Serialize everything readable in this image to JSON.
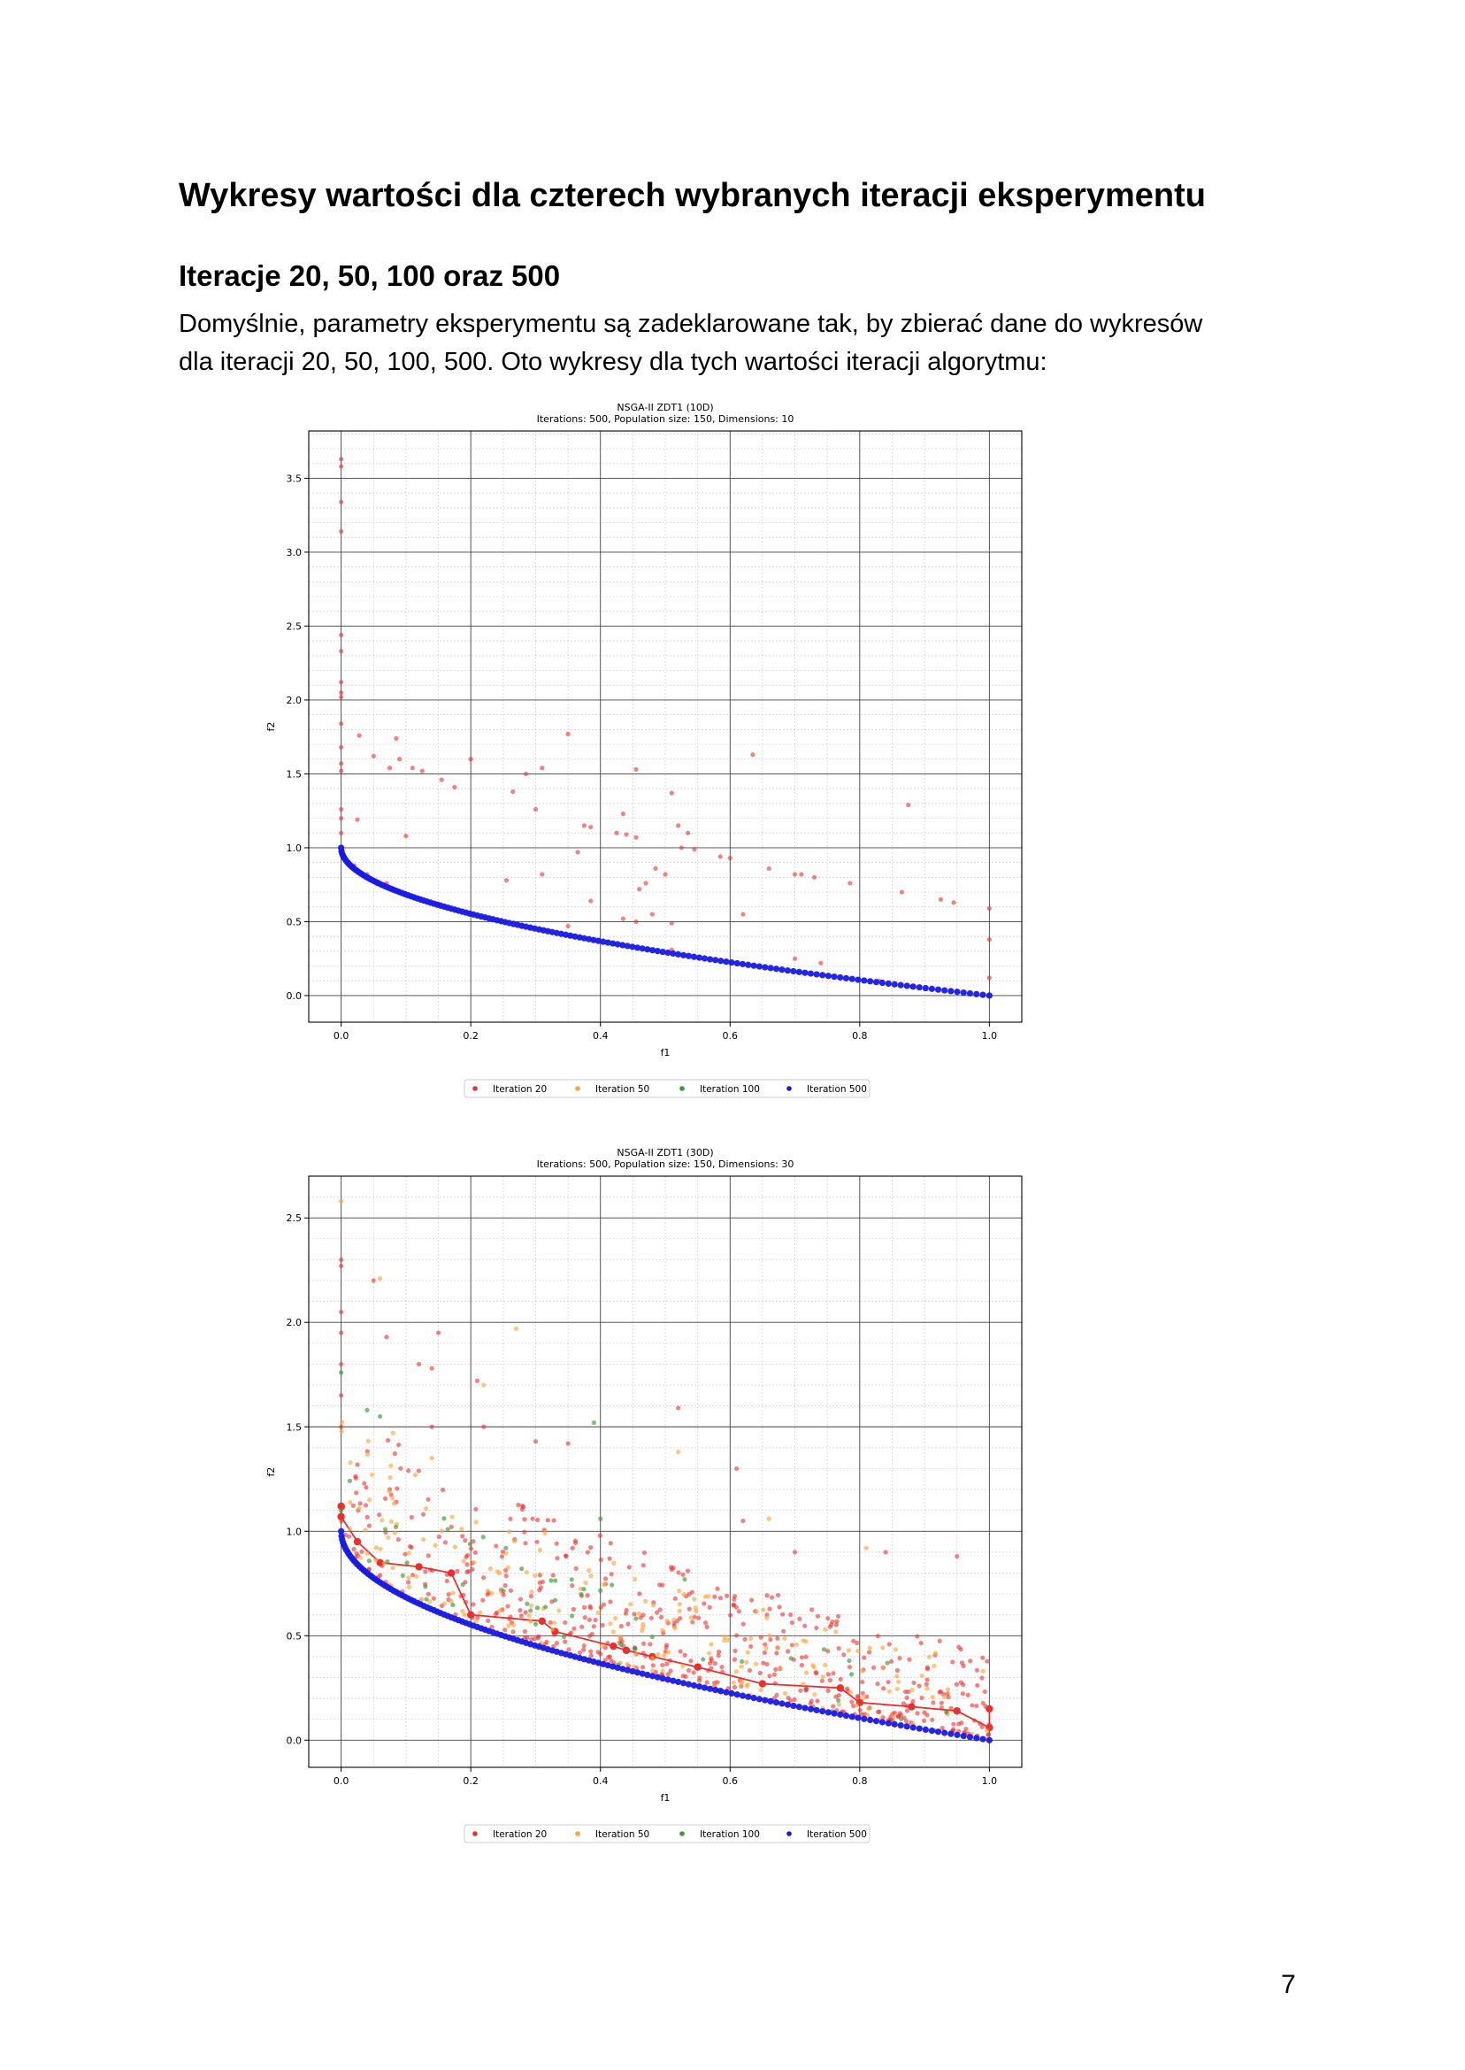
{
  "heading": "Wykresy wartości dla czterech wybranych iteracji eksperymentu",
  "subheading": "Iteracje 20, 50, 100 oraz 500",
  "paragraph": {
    "line1": "Domyślnie, parametry eksperymentu są zadeklarowane tak, by zbierać dane do wykresów",
    "line2": "dla iteracji 20, 50, 100, 500. Oto wykresy dla tych wartości iteracji algorytmu:"
  },
  "page_number": "7",
  "chart_data": [
    {
      "type": "scatter",
      "title": "NSGA-II ZDT1 (10D)",
      "subtitle": "Iterations: 500, Population size: 150, Dimensions: 10",
      "xlabel": "f1",
      "ylabel": "f2",
      "xlim": [
        -0.05,
        1.05
      ],
      "ylim": [
        -0.18,
        3.82
      ],
      "xticks": [
        "0.0",
        "0.2",
        "0.4",
        "0.6",
        "0.8",
        "1.0"
      ],
      "xtick_values": [
        0,
        0.2,
        0.4,
        0.6,
        0.8,
        1.0
      ],
      "yticks": [
        "0.0",
        "0.5",
        "1.0",
        "1.5",
        "2.0",
        "2.5",
        "3.0",
        "3.5"
      ],
      "ytick_values": [
        0,
        0.5,
        1.0,
        1.5,
        2.0,
        2.5,
        3.0,
        3.5
      ],
      "grid": true,
      "legend_position": "below",
      "series": [
        {
          "name": "Iteration 20",
          "color": "#e8302e",
          "points": [
            [
              0,
              3.63
            ],
            [
              0,
              3.58
            ],
            [
              0,
              3.34
            ],
            [
              0,
              3.14
            ],
            [
              0,
              2.44
            ],
            [
              0,
              2.33
            ],
            [
              0,
              2.12
            ],
            [
              0,
              2.05
            ],
            [
              0,
              2.02
            ],
            [
              0,
              1.84
            ],
            [
              0,
              1.68
            ],
            [
              0,
              1.57
            ],
            [
              0,
              1.52
            ],
            [
              0,
              1.26
            ],
            [
              0,
              1.2
            ],
            [
              0,
              1.1
            ],
            [
              0.028,
              1.76
            ],
            [
              0.05,
              1.62
            ],
            [
              0.075,
              1.54
            ],
            [
              0.085,
              1.74
            ],
            [
              0.09,
              1.6
            ],
            [
              0.11,
              1.54
            ],
            [
              0.125,
              1.52
            ],
            [
              0.155,
              1.46
            ],
            [
              0.175,
              1.41
            ],
            [
              0.2,
              1.6
            ],
            [
              0.265,
              1.38
            ],
            [
              0.285,
              1.5
            ],
            [
              0.3,
              1.26
            ],
            [
              0.31,
              1.54
            ],
            [
              0.35,
              1.77
            ],
            [
              0.435,
              1.23
            ],
            [
              0.455,
              1.53
            ],
            [
              0.51,
              1.37
            ],
            [
              0.52,
              1.15
            ],
            [
              0.025,
              1.19
            ],
            [
              0.1,
              1.08
            ],
            [
              0.375,
              1.15
            ],
            [
              0.385,
              1.14
            ],
            [
              0.365,
              0.97
            ],
            [
              0.425,
              1.1
            ],
            [
              0.44,
              1.09
            ],
            [
              0.455,
              1.07
            ],
            [
              0.525,
              1.0
            ],
            [
              0.535,
              1.1
            ],
            [
              0.545,
              0.99
            ],
            [
              0.585,
              0.94
            ],
            [
              0.6,
              0.93
            ],
            [
              0.635,
              1.63
            ],
            [
              0.66,
              0.86
            ],
            [
              0.7,
              0.82
            ],
            [
              0.71,
              0.82
            ],
            [
              0.73,
              0.8
            ],
            [
              0.785,
              0.76
            ],
            [
              0.865,
              0.7
            ],
            [
              0.875,
              1.29
            ],
            [
              0.925,
              0.65
            ],
            [
              0.945,
              0.63
            ],
            [
              0.255,
              0.78
            ],
            [
              0.31,
              0.82
            ],
            [
              0.385,
              0.64
            ],
            [
              0.46,
              0.72
            ],
            [
              0.47,
              0.76
            ],
            [
              0.485,
              0.86
            ],
            [
              0.5,
              0.82
            ],
            [
              0.435,
              0.52
            ],
            [
              0.455,
              0.5
            ],
            [
              0.48,
              0.55
            ],
            [
              0.51,
              0.49
            ],
            [
              0.62,
              0.55
            ],
            [
              0.35,
              0.47
            ],
            [
              0.0,
              0.99
            ],
            [
              0.02,
              0.88
            ],
            [
              0.04,
              0.82
            ],
            [
              0.06,
              0.76
            ],
            [
              1.0,
              0.59
            ],
            [
              1.0,
              0.38
            ],
            [
              1.0,
              0.12
            ],
            [
              1.0,
              0.0
            ],
            [
              0.51,
              0.31
            ],
            [
              0.53,
              0.27
            ],
            [
              0.7,
              0.25
            ],
            [
              0.74,
              0.22
            ],
            [
              0.83,
              0.1
            ],
            [
              0.88,
              0.06
            ],
            [
              0.95,
              0.03
            ],
            [
              0.25,
              0.5
            ],
            [
              0.15,
              0.62
            ],
            [
              0.07,
              0.76
            ]
          ]
        },
        {
          "name": "Iteration 50",
          "color": "#ffa53a",
          "points": []
        },
        {
          "name": "Iteration 100",
          "color": "#3b9a3b",
          "points": []
        },
        {
          "name": "Iteration 500",
          "color": "#1919e6",
          "front": true,
          "points": []
        }
      ]
    },
    {
      "type": "scatter",
      "title": "NSGA-II ZDT1 (30D)",
      "subtitle": "Iterations: 500, Population size: 150, Dimensions: 30",
      "xlabel": "f1",
      "ylabel": "f2",
      "xlim": [
        -0.05,
        1.05
      ],
      "ylim": [
        -0.13,
        2.7
      ],
      "xticks": [
        "0.0",
        "0.2",
        "0.4",
        "0.6",
        "0.8",
        "1.0"
      ],
      "xtick_values": [
        0,
        0.2,
        0.4,
        0.6,
        0.8,
        1.0
      ],
      "yticks": [
        "0.0",
        "0.5",
        "1.0",
        "1.5",
        "2.0",
        "2.5"
      ],
      "ytick_values": [
        0,
        0.5,
        1.0,
        1.5,
        2.0,
        2.5
      ],
      "grid": true,
      "legend_position": "below",
      "series": [
        {
          "name": "Iteration 20",
          "color": "#e8302e",
          "front_line": [
            [
              0,
              1.12
            ],
            [
              0,
              1.07
            ],
            [
              0.025,
              0.95
            ],
            [
              0.06,
              0.85
            ],
            [
              0.12,
              0.83
            ],
            [
              0.17,
              0.8
            ],
            [
              0.2,
              0.6
            ],
            [
              0.31,
              0.57
            ],
            [
              0.33,
              0.52
            ],
            [
              0.42,
              0.45
            ],
            [
              0.44,
              0.43
            ],
            [
              0.48,
              0.4
            ],
            [
              0.55,
              0.35
            ],
            [
              0.65,
              0.27
            ],
            [
              0.77,
              0.25
            ],
            [
              0.8,
              0.18
            ],
            [
              0.88,
              0.16
            ],
            [
              0.95,
              0.14
            ],
            [
              1.0,
              0.06
            ],
            [
              1.0,
              0.15
            ]
          ],
          "points": [
            [
              0,
              2.3
            ],
            [
              0,
              2.27
            ],
            [
              0,
              2.05
            ],
            [
              0,
              1.95
            ],
            [
              0,
              1.8
            ],
            [
              0,
              1.65
            ],
            [
              0,
              1.5
            ],
            [
              0.05,
              2.2
            ],
            [
              0.07,
              1.93
            ],
            [
              0.12,
              1.8
            ],
            [
              0.14,
              1.78
            ],
            [
              0.15,
              1.95
            ],
            [
              0.14,
              1.5
            ],
            [
              0.21,
              1.72
            ],
            [
              0.22,
              1.5
            ],
            [
              0.3,
              1.43
            ],
            [
              0.35,
              1.42
            ],
            [
              0.52,
              1.59
            ],
            [
              0.61,
              1.3
            ],
            [
              0.7,
              0.9
            ],
            [
              0.84,
              0.9
            ],
            [
              0.95,
              0.88
            ],
            [
              0.62,
              1.05
            ]
          ],
          "cloud": {
            "count": 520,
            "x_range": [
              0.0,
              1.0
            ],
            "y_above_front": [
              0.02,
              0.75
            ],
            "seed": 11
          }
        },
        {
          "name": "Iteration 50",
          "color": "#ffa53a",
          "points": [
            [
              0,
              2.58
            ],
            [
              0.06,
              2.21
            ],
            [
              0.27,
              1.97
            ],
            [
              0.22,
              1.7
            ],
            [
              0.52,
              1.38
            ],
            [
              0.08,
              1.47
            ],
            [
              0.14,
              1.35
            ],
            [
              0.81,
              0.92
            ],
            [
              0.66,
              1.06
            ]
          ],
          "cloud": {
            "count": 230,
            "x_range": [
              0.0,
              1.0
            ],
            "y_above_front": [
              0.0,
              0.65
            ],
            "seed": 23
          }
        },
        {
          "name": "Iteration 100",
          "color": "#3b9a3b",
          "points": [
            [
              0.04,
              1.58
            ],
            [
              0.06,
              1.55
            ],
            [
              0.39,
              1.52
            ],
            [
              0.4,
              1.06
            ],
            [
              0.53,
              0.77
            ],
            [
              0.0,
              1.76
            ],
            [
              0.0,
              1.1
            ]
          ],
          "cloud": {
            "count": 55,
            "x_range": [
              0.0,
              1.0
            ],
            "y_above_front": [
              0.0,
              0.5
            ],
            "seed": 37
          }
        },
        {
          "name": "Iteration 500",
          "color": "#1919e6",
          "front": true,
          "points": []
        }
      ]
    }
  ]
}
